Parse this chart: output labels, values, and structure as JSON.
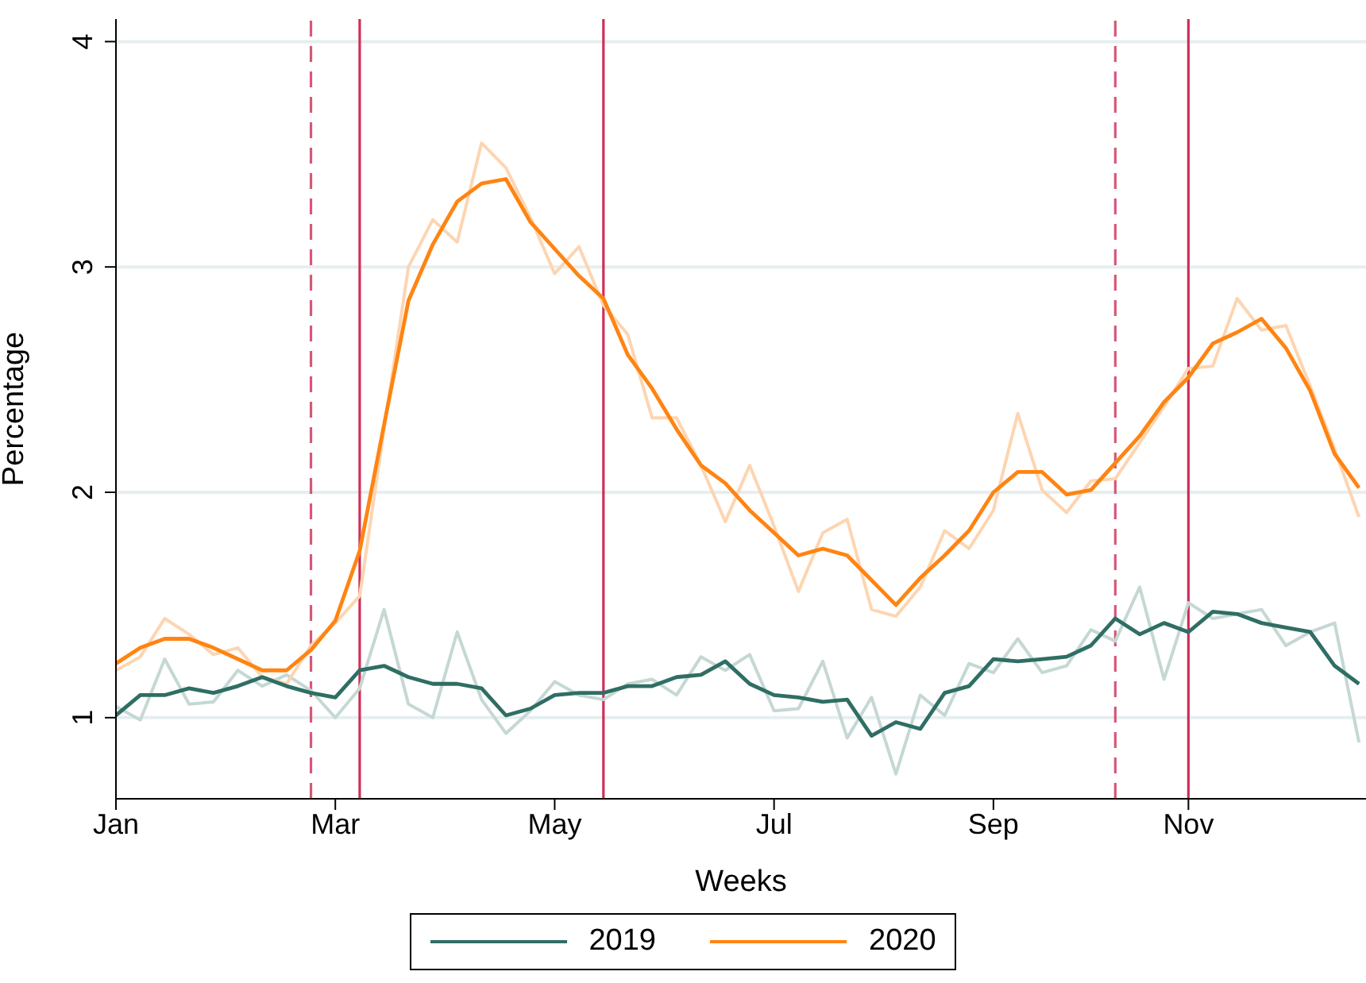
{
  "chart_data": {
    "type": "line",
    "xlabel": "Weeks",
    "ylabel": "Percentage",
    "x": [
      "--01-01",
      "--01-08",
      "--01-15",
      "--01-22",
      "--01-29",
      "--02-05",
      "--02-12",
      "--02-19",
      "--02-26",
      "--03-04",
      "--03-11",
      "--03-18",
      "--03-25",
      "--04-01",
      "--04-08",
      "--04-15",
      "--04-22",
      "--04-29",
      "--05-06",
      "--05-13",
      "--05-20",
      "--05-27",
      "--06-03",
      "--06-10",
      "--06-17",
      "--06-24",
      "--07-01",
      "--07-08",
      "--07-15",
      "--07-22",
      "--07-29",
      "--08-05",
      "--08-12",
      "--08-19",
      "--08-26",
      "--09-02",
      "--09-09",
      "--09-16",
      "--09-23",
      "--09-30",
      "--10-07",
      "--10-14",
      "--10-21",
      "--10-28",
      "--11-04",
      "--11-11",
      "--11-18",
      "--11-25",
      "--12-02",
      "--12-09",
      "--12-16",
      "--12-23"
    ],
    "series": [
      {
        "color": "#c5d8d3",
        "values": [
          1.05,
          0.99,
          1.26,
          1.06,
          1.07,
          1.21,
          1.14,
          1.19,
          1.12,
          1.0,
          1.13,
          1.48,
          1.06,
          1.0,
          1.38,
          1.08,
          0.93,
          1.03,
          1.16,
          1.1,
          1.08,
          1.15,
          1.17,
          1.1,
          1.27,
          1.21,
          1.28,
          1.03,
          1.04,
          1.25,
          0.91,
          1.09,
          0.75,
          1.1,
          1.01,
          1.24,
          1.2,
          1.35,
          1.2,
          1.23,
          1.39,
          1.34,
          1.58,
          1.17,
          1.51,
          1.44,
          1.46,
          1.48,
          1.32,
          1.38,
          1.42,
          0.89
        ]
      },
      {
        "color": "#fdd5b1",
        "values": [
          1.21,
          1.27,
          1.44,
          1.37,
          1.28,
          1.31,
          1.18,
          1.15,
          1.32,
          1.42,
          1.54,
          2.28,
          3.0,
          3.21,
          3.11,
          3.55,
          3.44,
          3.22,
          2.97,
          3.09,
          2.83,
          2.7,
          2.33,
          2.33,
          2.12,
          1.87,
          2.12,
          1.85,
          1.56,
          1.82,
          1.88,
          1.48,
          1.45,
          1.58,
          1.83,
          1.75,
          1.92,
          2.35,
          2.01,
          1.91,
          2.05,
          2.06,
          2.22,
          2.38,
          2.55,
          2.56,
          2.86,
          2.72,
          2.74,
          2.47,
          2.19,
          1.89
        ]
      },
      {
        "name": "2019",
        "color": "#2f6e64",
        "values": [
          1.01,
          1.1,
          1.1,
          1.13,
          1.11,
          1.14,
          1.18,
          1.14,
          1.11,
          1.09,
          1.21,
          1.23,
          1.18,
          1.15,
          1.15,
          1.13,
          1.01,
          1.04,
          1.1,
          1.11,
          1.11,
          1.14,
          1.14,
          1.18,
          1.19,
          1.25,
          1.15,
          1.1,
          1.09,
          1.07,
          1.08,
          0.92,
          0.98,
          0.95,
          1.11,
          1.14,
          1.26,
          1.25,
          1.26,
          1.27,
          1.32,
          1.44,
          1.37,
          1.42,
          1.38,
          1.47,
          1.46,
          1.42,
          1.4,
          1.38,
          1.23,
          1.15
        ]
      },
      {
        "name": "2020",
        "color": "#ff8412",
        "values": [
          1.24,
          1.31,
          1.35,
          1.35,
          1.31,
          1.26,
          1.21,
          1.21,
          1.3,
          1.43,
          1.74,
          2.3,
          2.85,
          3.1,
          3.29,
          3.37,
          3.39,
          3.2,
          3.08,
          2.96,
          2.86,
          2.61,
          2.46,
          2.28,
          2.12,
          2.04,
          1.92,
          1.82,
          1.72,
          1.75,
          1.72,
          1.61,
          1.5,
          1.62,
          1.72,
          1.83,
          2.0,
          2.09,
          2.09,
          1.99,
          2.01,
          2.13,
          2.25,
          2.4,
          2.51,
          2.66,
          2.71,
          2.77,
          2.64,
          2.45,
          2.17,
          2.02
        ]
      }
    ],
    "xlim": [
      "--01-01",
      "--12-25"
    ],
    "xticks": [
      {
        "value": "--01-01",
        "label": "Jan"
      },
      {
        "value": "--03-04",
        "label": "Mar"
      },
      {
        "value": "--05-06",
        "label": "May"
      },
      {
        "value": "--07-08",
        "label": "Jul"
      },
      {
        "value": "--09-09",
        "label": "Sep"
      },
      {
        "value": "--11-04",
        "label": "Nov"
      }
    ],
    "ylim": [
      0.64,
      4.1
    ],
    "yticks": [
      1,
      2,
      3,
      4
    ],
    "ref_lines": [
      {
        "axis": "x",
        "value": "--02-26",
        "color": "#d6587a",
        "line_style": "dashed"
      },
      {
        "axis": "x",
        "value": "--03-11",
        "color": "#cf2f5a",
        "line_style": "solid"
      },
      {
        "axis": "x",
        "value": "--05-20",
        "color": "#cf2f5a",
        "line_style": "solid"
      },
      {
        "axis": "x",
        "value": "--10-14",
        "color": "#d6587a",
        "line_style": "dashed"
      },
      {
        "axis": "x",
        "value": "--11-04",
        "color": "#cf2f5a",
        "line_style": "solid"
      }
    ],
    "grid": "y",
    "legend": "bottom",
    "marker": "none",
    "line_style": "solid"
  }
}
